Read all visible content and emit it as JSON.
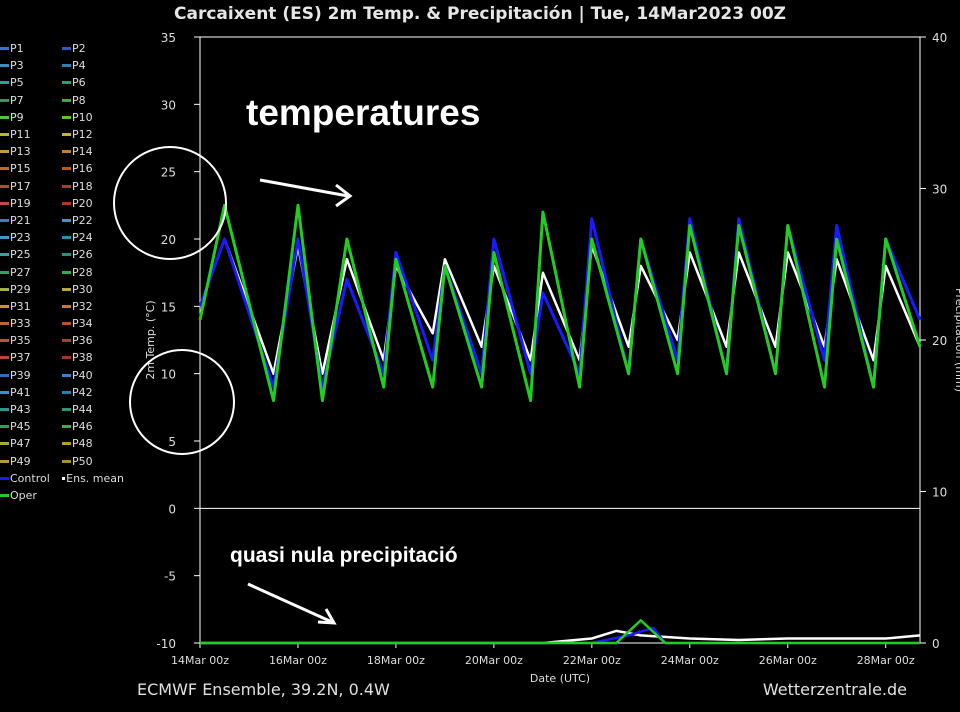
{
  "title": "Carcaixent  (ES)  2m Temp. & Precipitación | Tue, 14Mar2023 00Z",
  "footer": {
    "source": "ECMWF Ensemble, 39.2N, 0.4W",
    "site": "Wetterzentrale.de"
  },
  "annotations": {
    "temperatures": "temperatures",
    "precip": "quasi nula precipitació"
  },
  "legend": {
    "members": [
      "P1",
      "P2",
      "P3",
      "P4",
      "P5",
      "P6",
      "P7",
      "P8",
      "P9",
      "P10",
      "P11",
      "P12",
      "P13",
      "P14",
      "P15",
      "P16",
      "P17",
      "P18",
      "P19",
      "P20",
      "P21",
      "P22",
      "P23",
      "P24",
      "P25",
      "P26",
      "P27",
      "P28",
      "P29",
      "P30",
      "P31",
      "P32",
      "P33",
      "P34",
      "P35",
      "P36",
      "P37",
      "P38",
      "P39",
      "P40",
      "P41",
      "P42",
      "P43",
      "P44",
      "P45",
      "P46",
      "P47",
      "P48",
      "P49",
      "P50",
      "Control",
      "Ens. mean",
      "Oper"
    ],
    "colors": [
      "#3a6fd8",
      "#2a5cc0",
      "#3b8fc0",
      "#2f7fb0",
      "#2e9e9a",
      "#27a070",
      "#2aa055",
      "#35b040",
      "#4cc83a",
      "#55c828",
      "#b8b830",
      "#c8b040",
      "#c89a30",
      "#c08030",
      "#c06a28",
      "#b85a20",
      "#b84a30",
      "#b03a28",
      "#c04a4a",
      "#a83a30",
      "#3a7ad0",
      "#4a8ad8",
      "#3a9ac8",
      "#2a8ab8",
      "#3aa0a0",
      "#2a9080",
      "#30a060",
      "#38a848",
      "#a8b040",
      "#b8a838",
      "#c89040",
      "#c07838",
      "#b86830",
      "#b05828",
      "#c05038",
      "#a84028",
      "#b84838",
      "#a03828",
      "#2a70c0",
      "#3a80d0",
      "#3a90c0",
      "#2a80a8",
      "#2a9890",
      "#289878",
      "#30a058",
      "#38b048",
      "#a8a838",
      "#b8a030",
      "#b89838",
      "#a89030",
      "#1a1aff",
      "#ffffff",
      "#22cc22"
    ]
  },
  "chart_data": {
    "type": "line",
    "title": "Carcaixent  (ES)  2m Temp. & Precipitación | Tue, 14Mar2023 00Z",
    "xlabel": "Date (UTC)",
    "ylabel": "2m Temp. (°C)",
    "y2label": "Precipitación (mm)",
    "x_ticks": [
      "14Mar 00z",
      "16Mar 00z",
      "18Mar 00z",
      "20Mar 00z",
      "22Mar 00z",
      "24Mar 00z",
      "26Mar 00z",
      "28Mar 00z"
    ],
    "ylim": [
      -10,
      35
    ],
    "y_ticks": [
      -10,
      -5,
      0,
      5,
      10,
      15,
      20,
      25,
      30,
      35
    ],
    "y2lim": [
      0,
      40
    ],
    "y2_ticks": [
      0,
      10,
      20,
      30,
      40
    ],
    "x_range_days": [
      0,
      14.7
    ],
    "temperature_series": [
      {
        "name": "Ens. mean",
        "color": "#ffffff",
        "values": [
          [
            0,
            15
          ],
          [
            0.5,
            20
          ],
          [
            1.5,
            10
          ],
          [
            2,
            19.5
          ],
          [
            2.5,
            10
          ],
          [
            3,
            18.5
          ],
          [
            3.75,
            11
          ],
          [
            4,
            18
          ],
          [
            4.75,
            13
          ],
          [
            5,
            18.5
          ],
          [
            5.75,
            12
          ],
          [
            6,
            18
          ],
          [
            6.75,
            11
          ],
          [
            7,
            17.5
          ],
          [
            7.75,
            11
          ],
          [
            8,
            19.5
          ],
          [
            8.75,
            12
          ],
          [
            9,
            18
          ],
          [
            9.75,
            12.5
          ],
          [
            10,
            19
          ],
          [
            10.75,
            12
          ],
          [
            11,
            19
          ],
          [
            11.75,
            12
          ],
          [
            12,
            19
          ],
          [
            12.75,
            12
          ],
          [
            13,
            18.5
          ],
          [
            13.75,
            11
          ],
          [
            14,
            18
          ],
          [
            14.7,
            12
          ]
        ]
      },
      {
        "name": "Control",
        "color": "#1a1aff",
        "values": [
          [
            0,
            15
          ],
          [
            0.5,
            20
          ],
          [
            1.5,
            9
          ],
          [
            2,
            20
          ],
          [
            2.5,
            9
          ],
          [
            3,
            17
          ],
          [
            3.75,
            10
          ],
          [
            4,
            19
          ],
          [
            4.75,
            11
          ],
          [
            5,
            18
          ],
          [
            5.75,
            10
          ],
          [
            6,
            20
          ],
          [
            6.75,
            10
          ],
          [
            7,
            16
          ],
          [
            7.75,
            10
          ],
          [
            8,
            21.5
          ],
          [
            8.75,
            10
          ],
          [
            9,
            20
          ],
          [
            9.75,
            11
          ],
          [
            10,
            21.5
          ],
          [
            10.75,
            10
          ],
          [
            11,
            21.5
          ],
          [
            11.75,
            10
          ],
          [
            12,
            21
          ],
          [
            12.75,
            11
          ],
          [
            13,
            21
          ],
          [
            13.75,
            9
          ],
          [
            14,
            20
          ],
          [
            14.7,
            14
          ]
        ]
      },
      {
        "name": "Oper",
        "color": "#22cc22",
        "values": [
          [
            0,
            14
          ],
          [
            0.5,
            22.5
          ],
          [
            1.5,
            8
          ],
          [
            2,
            22.5
          ],
          [
            2.5,
            8
          ],
          [
            3,
            20
          ],
          [
            3.75,
            9
          ],
          [
            4,
            18.5
          ],
          [
            4.75,
            9
          ],
          [
            5,
            18
          ],
          [
            5.75,
            9
          ],
          [
            6,
            19
          ],
          [
            6.75,
            8
          ],
          [
            7,
            22
          ],
          [
            7.75,
            9
          ],
          [
            8,
            20
          ],
          [
            8.75,
            10
          ],
          [
            9,
            20
          ],
          [
            9.75,
            10
          ],
          [
            10,
            21
          ],
          [
            10.75,
            10
          ],
          [
            11,
            21
          ],
          [
            11.75,
            10
          ],
          [
            12,
            21
          ],
          [
            12.75,
            9
          ],
          [
            13,
            20
          ],
          [
            13.75,
            9
          ],
          [
            14,
            20
          ],
          [
            14.7,
            12
          ]
        ]
      }
    ],
    "precip_series": [
      {
        "name": "Ens. mean",
        "color": "#ffffff",
        "values": [
          [
            0,
            0
          ],
          [
            7,
            0
          ],
          [
            8,
            0.3
          ],
          [
            8.5,
            0.8
          ],
          [
            9,
            0.5
          ],
          [
            10,
            0.3
          ],
          [
            11,
            0.2
          ],
          [
            12,
            0.3
          ],
          [
            13,
            0.3
          ],
          [
            14,
            0.3
          ],
          [
            14.7,
            0.5
          ]
        ]
      },
      {
        "name": "Control",
        "color": "#1a1aff",
        "values": [
          [
            0,
            0
          ],
          [
            8,
            0
          ],
          [
            8.75,
            0.5
          ],
          [
            9.25,
            1
          ],
          [
            9.5,
            0
          ],
          [
            14.7,
            0
          ]
        ]
      },
      {
        "name": "Oper",
        "color": "#22cc22",
        "values": [
          [
            0,
            0
          ],
          [
            8.5,
            0
          ],
          [
            9,
            1.5
          ],
          [
            9.5,
            0
          ],
          [
            14.7,
            0
          ]
        ]
      }
    ]
  },
  "colors": {
    "background": "#000000",
    "axis": "#ffffff",
    "text": "#dddddd"
  }
}
